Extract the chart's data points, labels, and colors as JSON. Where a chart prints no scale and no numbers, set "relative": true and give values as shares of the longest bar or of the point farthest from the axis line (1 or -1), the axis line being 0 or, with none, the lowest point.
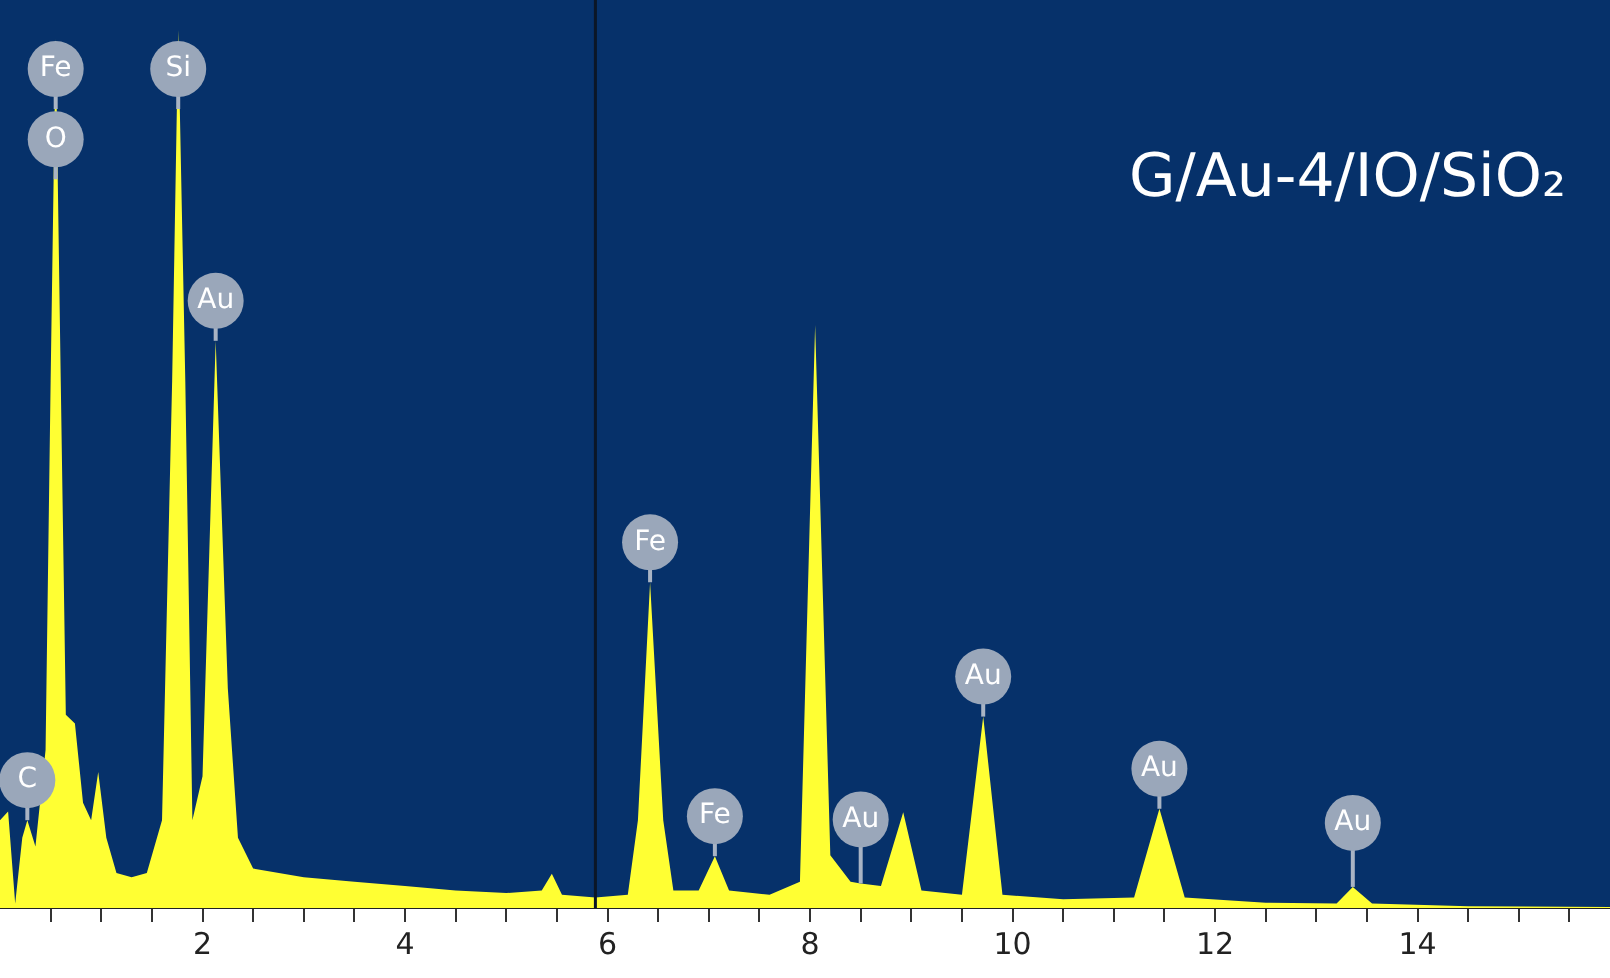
{
  "chart_data": {
    "type": "area",
    "title": "G/Au-4/IO/SiO₂",
    "relative": true,
    "legend": false,
    "grid": false,
    "series": [
      {
        "color": "#ffff33",
        "x": [
          0.0,
          0.08,
          0.15,
          0.22,
          0.27,
          0.35,
          0.45,
          0.5,
          0.55,
          0.6,
          0.65,
          0.74,
          0.82,
          0.9,
          0.97,
          1.05,
          1.15,
          1.3,
          1.45,
          1.6,
          1.7,
          1.76,
          1.83,
          1.9,
          2.0,
          2.13,
          2.25,
          2.35,
          2.5,
          3.0,
          3.5,
          4.0,
          4.5,
          5.0,
          5.35,
          5.45,
          5.55,
          5.88,
          6.2,
          6.3,
          6.42,
          6.55,
          6.65,
          6.9,
          7.06,
          7.2,
          7.6,
          7.9,
          8.05,
          8.2,
          8.4,
          8.5,
          8.7,
          8.92,
          9.1,
          9.5,
          9.71,
          9.9,
          10.5,
          11.2,
          11.45,
          11.7,
          12.5,
          13.2,
          13.36,
          13.55,
          14.5,
          15.9
        ],
        "values": [
          0.1,
          0.11,
          0.005,
          0.08,
          0.1,
          0.07,
          0.18,
          0.6,
          0.99,
          0.6,
          0.22,
          0.21,
          0.12,
          0.1,
          0.155,
          0.08,
          0.04,
          0.035,
          0.04,
          0.1,
          0.6,
          1.0,
          0.6,
          0.1,
          0.15,
          0.646,
          0.25,
          0.08,
          0.045,
          0.035,
          0.03,
          0.025,
          0.02,
          0.017,
          0.02,
          0.039,
          0.015,
          0.012,
          0.015,
          0.1,
          0.371,
          0.1,
          0.02,
          0.02,
          0.059,
          0.02,
          0.015,
          0.03,
          0.664,
          0.06,
          0.03,
          0.028,
          0.025,
          0.109,
          0.02,
          0.015,
          0.218,
          0.015,
          0.01,
          0.012,
          0.113,
          0.012,
          0.006,
          0.005,
          0.024,
          0.005,
          0.002,
          0.001
        ]
      }
    ],
    "xlim": [
      0,
      15.9
    ],
    "xticks": [
      {
        "value": 0.5,
        "label": null
      },
      {
        "value": 1,
        "label": null
      },
      {
        "value": 1.5,
        "label": null
      },
      2,
      {
        "value": 2.5,
        "label": null
      },
      {
        "value": 3,
        "label": null
      },
      {
        "value": 3.5,
        "label": null
      },
      4,
      {
        "value": 4.5,
        "label": null
      },
      {
        "value": 5,
        "label": null
      },
      {
        "value": 5.5,
        "label": null
      },
      6,
      {
        "value": 6.5,
        "label": null
      },
      {
        "value": 7,
        "label": null
      },
      {
        "value": 7.5,
        "label": null
      },
      8,
      {
        "value": 8.5,
        "label": null
      },
      {
        "value": 9,
        "label": null
      },
      {
        "value": 9.5,
        "label": null
      },
      10,
      {
        "value": 10.5,
        "label": null
      },
      {
        "value": 11,
        "label": null
      },
      {
        "value": 11.5,
        "label": null
      },
      12,
      {
        "value": 12.5,
        "label": null
      },
      {
        "value": 13,
        "label": null
      },
      {
        "value": 13.5,
        "label": null
      },
      14,
      {
        "value": 14.5,
        "label": null
      },
      {
        "value": 15,
        "label": null
      },
      {
        "value": 15.5,
        "label": null
      }
    ],
    "ref_lines": [
      {
        "axis": "x",
        "value": 5.88,
        "color": "#0b1626"
      }
    ],
    "annotations": [
      {
        "text": "Fe",
        "x": 0.55,
        "y": 0.91
      },
      {
        "text": "O",
        "x": 0.55,
        "y": 0.83
      },
      {
        "text": "Si",
        "x": 1.76,
        "y": 0.91
      },
      {
        "text": "Au",
        "x": 2.13,
        "y": 0.646
      },
      {
        "text": "C",
        "x": 0.27,
        "y": 0.1
      },
      {
        "text": "Fe",
        "x": 6.42,
        "y": 0.371
      },
      {
        "text": "Fe",
        "x": 7.06,
        "y": 0.059
      },
      {
        "text": "Au",
        "x": 8.5,
        "y": 0.028
      },
      {
        "text": "Au",
        "x": 9.71,
        "y": 0.218
      },
      {
        "text": "Au",
        "x": 11.45,
        "y": 0.113
      },
      {
        "text": "Au",
        "x": 13.36,
        "y": 0.024
      }
    ]
  }
}
